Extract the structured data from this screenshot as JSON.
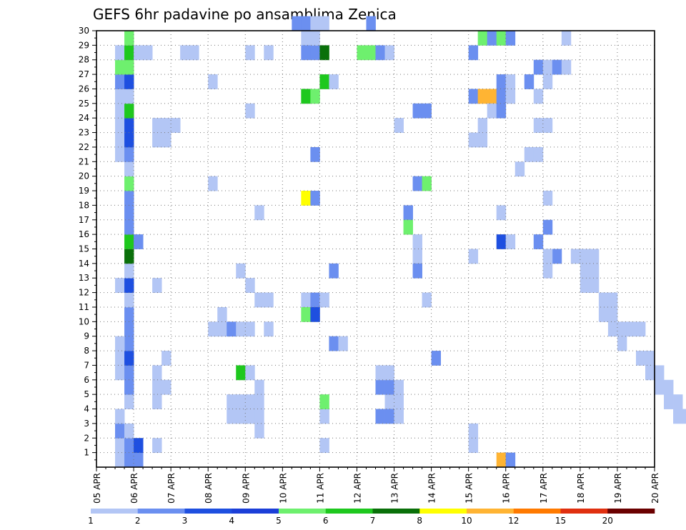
{
  "chart_data": {
    "type": "heatmap",
    "title": "GEFS 6hr padavine po ansamblima Zenica",
    "xlabel": "",
    "ylabel": "",
    "x_ticks": [
      "05 APR",
      "06 APR",
      "07 APR",
      "08 APR",
      "09 APR",
      "10 APR",
      "11 APR",
      "12 APR",
      "13 APR",
      "14 APR",
      "15 APR",
      "16 APR",
      "17 APR",
      "18 APR",
      "19 APR",
      "20 APR"
    ],
    "y_ticks": [
      "1",
      "2",
      "3",
      "4",
      "5",
      "6",
      "7",
      "8",
      "9",
      "10",
      "11",
      "12",
      "13",
      "14",
      "15",
      "16",
      "17",
      "18",
      "19",
      "20",
      "21",
      "22",
      "23",
      "24",
      "25",
      "26",
      "27",
      "28",
      "29",
      "30"
    ],
    "xlim_days": [
      0,
      15
    ],
    "steps_per_day": 4,
    "ylim": [
      0,
      30
    ],
    "grid": true,
    "colorbar": {
      "placement": "bottom",
      "labels": [
        "1",
        "2",
        "3",
        "4",
        "5",
        "6",
        "7",
        "8",
        "10",
        "12",
        "15",
        "20"
      ],
      "colors": [
        "#b3c6f5",
        "#6b8ff0",
        "#1e4fe0",
        "#1c3fd8",
        "#6ef06e",
        "#1ec81e",
        "#0a700a",
        "#ffff00",
        "#ffb433",
        "#ff7a00",
        "#e03010",
        "#6b0000"
      ]
    },
    "cells": [
      [
        2,
        0,
        1
      ],
      [
        2,
        1,
        1
      ],
      [
        2,
        2,
        2
      ],
      [
        3,
        0,
        2
      ],
      [
        3,
        1,
        2
      ],
      [
        4,
        0,
        2
      ],
      [
        4,
        1,
        3
      ],
      [
        3,
        2,
        1
      ],
      [
        2,
        3,
        1
      ],
      [
        3,
        4,
        1
      ],
      [
        3,
        5,
        2
      ],
      [
        2,
        6,
        1
      ],
      [
        3,
        6,
        2
      ],
      [
        2,
        7,
        1
      ],
      [
        3,
        7,
        3
      ],
      [
        3,
        8,
        2
      ],
      [
        2,
        8,
        1
      ],
      [
        3,
        9,
        2
      ],
      [
        3,
        10,
        2
      ],
      [
        3,
        11,
        1
      ],
      [
        2,
        12,
        1
      ],
      [
        3,
        12,
        3
      ],
      [
        3,
        13,
        1
      ],
      [
        3,
        14,
        7
      ],
      [
        3,
        15,
        6
      ],
      [
        4,
        15,
        2
      ],
      [
        3,
        16,
        2
      ],
      [
        3,
        17,
        2
      ],
      [
        3,
        18,
        2
      ],
      [
        3,
        19,
        5
      ],
      [
        3,
        20,
        1
      ],
      [
        2,
        21,
        1
      ],
      [
        3,
        21,
        2
      ],
      [
        2,
        22,
        1
      ],
      [
        3,
        22,
        3
      ],
      [
        2,
        23,
        1
      ],
      [
        3,
        23,
        3
      ],
      [
        2,
        24,
        1
      ],
      [
        3,
        24,
        6
      ],
      [
        2,
        25,
        1
      ],
      [
        3,
        25,
        1
      ],
      [
        2,
        26,
        2
      ],
      [
        3,
        26,
        3
      ],
      [
        2,
        27,
        5
      ],
      [
        3,
        27,
        5
      ],
      [
        2,
        28,
        1
      ],
      [
        3,
        28,
        6
      ],
      [
        3,
        29,
        5
      ],
      [
        4,
        28,
        1
      ],
      [
        5,
        28,
        1
      ],
      [
        6,
        1,
        1
      ],
      [
        6,
        4,
        1
      ],
      [
        7,
        5,
        1
      ],
      [
        6,
        5,
        1
      ],
      [
        6,
        6,
        1
      ],
      [
        7,
        7,
        1
      ],
      [
        6,
        12,
        1
      ],
      [
        6,
        22,
        1
      ],
      [
        7,
        22,
        1
      ],
      [
        7,
        23,
        1
      ],
      [
        6,
        23,
        1
      ],
      [
        8,
        23,
        1
      ],
      [
        9,
        28,
        1
      ],
      [
        10,
        28,
        1
      ],
      [
        12,
        26,
        1
      ],
      [
        12,
        9,
        1
      ],
      [
        13,
        9,
        1
      ],
      [
        14,
        9,
        2
      ],
      [
        15,
        9,
        1
      ],
      [
        16,
        9,
        1
      ],
      [
        13,
        10,
        1
      ],
      [
        15,
        6,
        6
      ],
      [
        16,
        6,
        1
      ],
      [
        14,
        3,
        1
      ],
      [
        15,
        3,
        1
      ],
      [
        16,
        3,
        1
      ],
      [
        17,
        3,
        1
      ],
      [
        14,
        4,
        1
      ],
      [
        15,
        4,
        1
      ],
      [
        16,
        4,
        1
      ],
      [
        17,
        4,
        1
      ],
      [
        17,
        2,
        1
      ],
      [
        18,
        9,
        1
      ],
      [
        16,
        12,
        1
      ],
      [
        16,
        24,
        1
      ],
      [
        16,
        28,
        1
      ],
      [
        17,
        11,
        1
      ],
      [
        18,
        11,
        1
      ],
      [
        17,
        17,
        1
      ],
      [
        17,
        5,
        1
      ],
      [
        15,
        13,
        1
      ],
      [
        12,
        19,
        1
      ],
      [
        18,
        28,
        1
      ],
      [
        21,
        30,
        2
      ],
      [
        22,
        30,
        2
      ],
      [
        23,
        30,
        1
      ],
      [
        24,
        30,
        1
      ],
      [
        22,
        29,
        1
      ],
      [
        22,
        28,
        2
      ],
      [
        23,
        28,
        2
      ],
      [
        22,
        11,
        1
      ],
      [
        23,
        11,
        2
      ],
      [
        24,
        11,
        1
      ],
      [
        22,
        10,
        5
      ],
      [
        23,
        10,
        3
      ],
      [
        22,
        18,
        8
      ],
      [
        23,
        18,
        2
      ],
      [
        23,
        21,
        2
      ],
      [
        22,
        25,
        6
      ],
      [
        23,
        25,
        5
      ],
      [
        24,
        26,
        6
      ],
      [
        25,
        26,
        1
      ],
      [
        24,
        28,
        7
      ],
      [
        23,
        29,
        1
      ],
      [
        24,
        3,
        1
      ],
      [
        25,
        8,
        2
      ],
      [
        26,
        8,
        1
      ],
      [
        25,
        13,
        2
      ],
      [
        24,
        4,
        5
      ],
      [
        24,
        1,
        1
      ],
      [
        29,
        30,
        2
      ],
      [
        28,
        28,
        5
      ],
      [
        29,
        28,
        5
      ],
      [
        30,
        28,
        2
      ],
      [
        31,
        28,
        1
      ],
      [
        31,
        4,
        1
      ],
      [
        32,
        4,
        1
      ],
      [
        30,
        5,
        2
      ],
      [
        31,
        5,
        2
      ],
      [
        32,
        5,
        1
      ],
      [
        30,
        6,
        1
      ],
      [
        31,
        6,
        1
      ],
      [
        30,
        3,
        2
      ],
      [
        31,
        3,
        2
      ],
      [
        32,
        3,
        1
      ],
      [
        32,
        23,
        1
      ],
      [
        34,
        24,
        2
      ],
      [
        35,
        24,
        2
      ],
      [
        34,
        19,
        2
      ],
      [
        35,
        19,
        5
      ],
      [
        34,
        15,
        1
      ],
      [
        34,
        14,
        1
      ],
      [
        33,
        17,
        2
      ],
      [
        33,
        16,
        5
      ],
      [
        34,
        13,
        2
      ],
      [
        35,
        11,
        1
      ],
      [
        36,
        7,
        2
      ],
      [
        40,
        22,
        1
      ],
      [
        41,
        22,
        1
      ],
      [
        40,
        25,
        2
      ],
      [
        40,
        28,
        2
      ],
      [
        41,
        25,
        9
      ],
      [
        42,
        25,
        9
      ],
      [
        42,
        24,
        1
      ],
      [
        43,
        24,
        2
      ],
      [
        41,
        29,
        5
      ],
      [
        42,
        29,
        2
      ],
      [
        43,
        29,
        5
      ],
      [
        44,
        29,
        2
      ],
      [
        43,
        26,
        2
      ],
      [
        44,
        26,
        1
      ],
      [
        43,
        25,
        2
      ],
      [
        44,
        25,
        1
      ],
      [
        40,
        2,
        1
      ],
      [
        40,
        1,
        1
      ],
      [
        40,
        14,
        1
      ],
      [
        43,
        0,
        9
      ],
      [
        44,
        0,
        2
      ],
      [
        41,
        23,
        1
      ],
      [
        43,
        17,
        1
      ],
      [
        43,
        15,
        3
      ],
      [
        44,
        15,
        1
      ],
      [
        45,
        20,
        1
      ],
      [
        46,
        21,
        1
      ],
      [
        47,
        21,
        1
      ],
      [
        47,
        23,
        1
      ],
      [
        48,
        23,
        1
      ],
      [
        47,
        25,
        1
      ],
      [
        46,
        26,
        2
      ],
      [
        48,
        26,
        1
      ],
      [
        47,
        27,
        2
      ],
      [
        48,
        27,
        1
      ],
      [
        49,
        27,
        2
      ],
      [
        50,
        27,
        1
      ],
      [
        50,
        29,
        1
      ],
      [
        47,
        15,
        2
      ],
      [
        48,
        18,
        1
      ],
      [
        48,
        16,
        2
      ],
      [
        49,
        14,
        2
      ],
      [
        48,
        13,
        1
      ],
      [
        48,
        14,
        1
      ],
      [
        51,
        14,
        1
      ],
      [
        52,
        14,
        1
      ],
      [
        53,
        14,
        1
      ],
      [
        52,
        13,
        1
      ],
      [
        53,
        13,
        1
      ],
      [
        52,
        12,
        1
      ],
      [
        53,
        12,
        1
      ],
      [
        54,
        11,
        1
      ],
      [
        55,
        11,
        1
      ],
      [
        55,
        10,
        1
      ],
      [
        54,
        10,
        1
      ],
      [
        55,
        9,
        1
      ],
      [
        56,
        9,
        1
      ],
      [
        56,
        8,
        1
      ],
      [
        57,
        9,
        1
      ],
      [
        58,
        9,
        1
      ],
      [
        58,
        7,
        1
      ],
      [
        59,
        7,
        1
      ],
      [
        59,
        6,
        1
      ],
      [
        60,
        6,
        1
      ],
      [
        60,
        5,
        1
      ],
      [
        61,
        5,
        1
      ],
      [
        61,
        4,
        1
      ],
      [
        62,
        4,
        1
      ],
      [
        62,
        3,
        1
      ],
      [
        63,
        3,
        1
      ]
    ]
  }
}
